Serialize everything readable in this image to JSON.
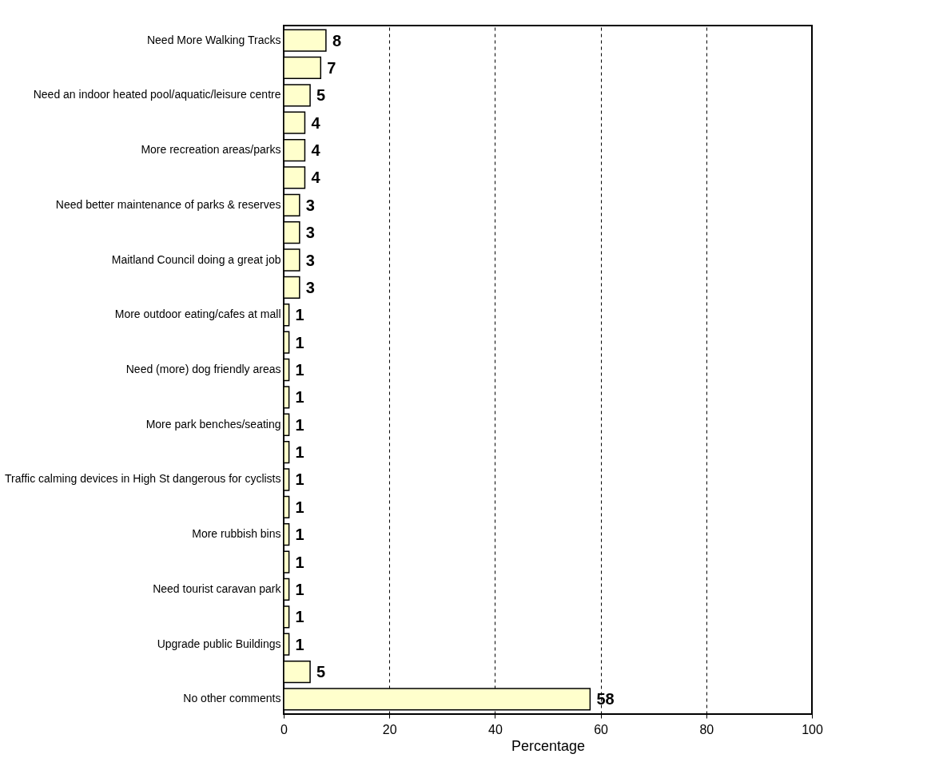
{
  "chart_data": {
    "type": "bar",
    "orientation": "horizontal",
    "xlabel": "Percentage",
    "categories": [
      "Need More Walking Tracks",
      null,
      "Need an indoor heated pool/aquatic/leisure centre",
      null,
      "More recreation areas/parks",
      null,
      "Need better maintenance of parks & reserves",
      null,
      "Maitland Council doing a great job",
      null,
      "More outdoor eating/cafes at mall",
      null,
      "Need (more) dog friendly areas",
      null,
      "More park benches/seating",
      null,
      "Traffic calming devices in High St dangerous for cyclists",
      null,
      "More rubbish bins",
      null,
      "Need tourist caravan park",
      null,
      "Upgrade public Buildings",
      null,
      "No other comments"
    ],
    "values": [
      8,
      7,
      5,
      4,
      4,
      4,
      3,
      3,
      3,
      3,
      1,
      1,
      1,
      1,
      1,
      1,
      1,
      1,
      1,
      1,
      1,
      1,
      1,
      5,
      58
    ],
    "color": "#ffffcc",
    "xlim": [
      0,
      100
    ],
    "xticks": [
      0,
      20,
      40,
      60,
      80,
      100
    ],
    "grid": "x",
    "line_style": "dashed",
    "data_labels": true
  }
}
